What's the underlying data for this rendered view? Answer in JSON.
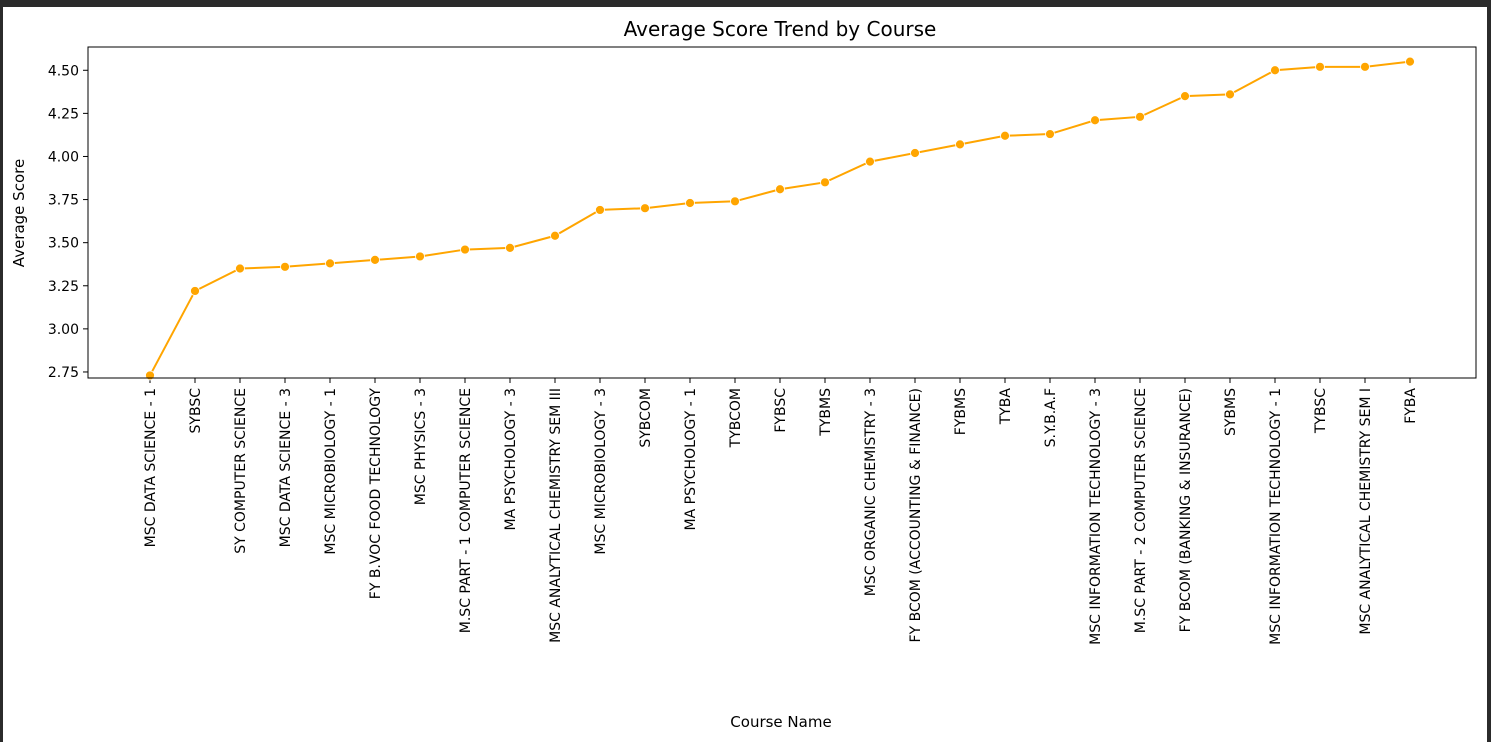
{
  "chart_data": {
    "type": "line",
    "title": "Average Score Trend by Course",
    "xlabel": "Course Name",
    "ylabel": "Average Score",
    "ylim": [
      2.715,
      4.635
    ],
    "yticks": [
      2.75,
      3.0,
      3.25,
      3.5,
      3.75,
      4.0,
      4.25,
      4.5
    ],
    "ytick_labels": [
      "2.75",
      "3.00",
      "3.25",
      "3.50",
      "3.75",
      "4.00",
      "4.25",
      "4.50"
    ],
    "grid": false,
    "line_color": "#ffa500",
    "categories": [
      "MSC DATA SCIENCE - 1",
      "SYBSC",
      "SY COMPUTER SCIENCE",
      "MSC DATA SCIENCE - 3",
      "MSC MICROBIOLOGY - 1",
      "FY B.VOC FOOD TECHNOLOGY",
      "MSC PHYSICS - 3",
      "M.SC PART - 1 COMPUTER SCIENCE",
      "MA PSYCHOLOGY - 3",
      "MSC ANALYTICAL CHEMISTRY SEM III",
      "MSC MICROBIOLOGY - 3",
      "SYBCOM",
      "MA PSYCHOLOGY - 1",
      "TYBCOM",
      "FYBSC",
      "TYBMS",
      "MSC ORGANIC CHEMISTRY - 3",
      "FY BCOM (ACCOUNTING & FINANCE)",
      "FYBMS",
      "TYBA",
      "S.Y.B.A.F",
      "MSC INFORMATION TECHNOLOGY - 3",
      "M.SC PART - 2 COMPUTER SCIENCE",
      "FY BCOM (BANKING & INSURANCE)",
      "SYBMS",
      "MSC INFORMATION TECHNOLOGY - 1",
      "TYBSC",
      "MSC ANALYTICAL CHEMISTRY SEM I",
      "FYBA"
    ],
    "values": [
      2.73,
      3.22,
      3.35,
      3.36,
      3.38,
      3.4,
      3.42,
      3.46,
      3.47,
      3.54,
      3.69,
      3.7,
      3.73,
      3.74,
      3.81,
      3.85,
      3.97,
      4.02,
      4.07,
      4.12,
      4.13,
      4.21,
      4.23,
      4.35,
      4.36,
      4.5,
      4.52,
      4.52,
      4.55
    ]
  }
}
